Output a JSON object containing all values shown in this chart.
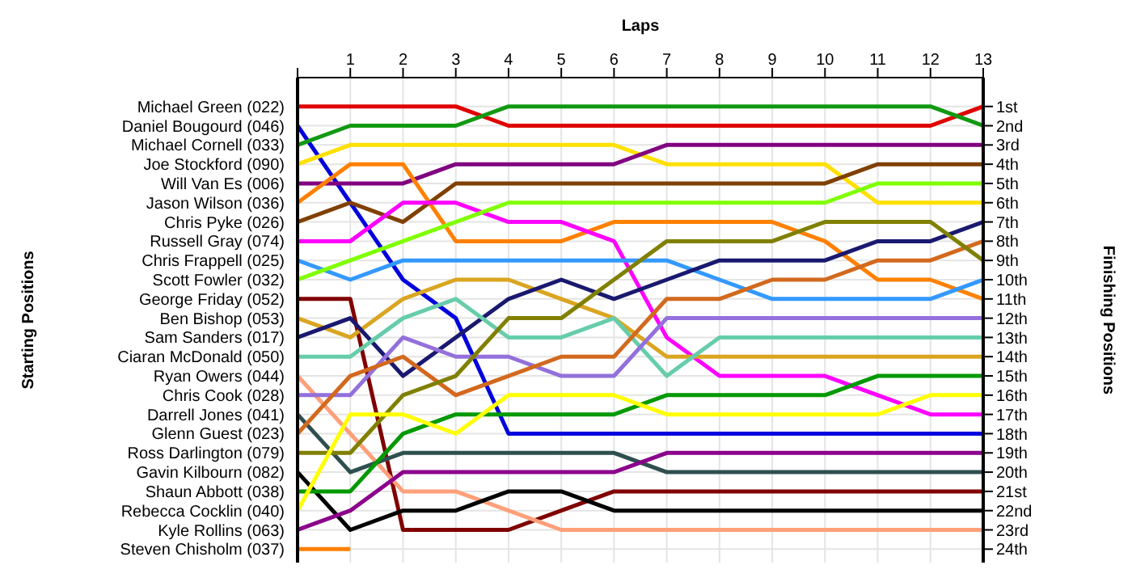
{
  "chart_data": {
    "type": "line",
    "xlabel": "Laps",
    "ylabel": "Finishing Positions",
    "annotations": [
      "Starting Positions"
    ],
    "grid": true,
    "marker": "none",
    "line_style": "solid",
    "x": [
      0,
      1,
      2,
      3,
      4,
      5,
      6,
      7,
      8,
      9,
      10,
      11,
      12,
      13
    ],
    "xlim": [
      0,
      13
    ],
    "xticks": [
      {
        "value": 0,
        "label": null
      },
      1,
      2,
      3,
      4,
      5,
      6,
      7,
      8,
      9,
      10,
      11,
      12,
      13
    ],
    "ylim": [
      24.7,
      -0.5
    ],
    "yticks": [
      {
        "value": 1,
        "label": "1st"
      },
      {
        "value": 2,
        "label": "2nd"
      },
      {
        "value": 3,
        "label": "3rd"
      },
      {
        "value": 4,
        "label": "4th"
      },
      {
        "value": 5,
        "label": "5th"
      },
      {
        "value": 6,
        "label": "6th"
      },
      {
        "value": 7,
        "label": "7th"
      },
      {
        "value": 8,
        "label": "8th"
      },
      {
        "value": 9,
        "label": "9th"
      },
      {
        "value": 10,
        "label": "10th"
      },
      {
        "value": 11,
        "label": "11th"
      },
      {
        "value": 12,
        "label": "12th"
      },
      {
        "value": 13,
        "label": "13th"
      },
      {
        "value": 14,
        "label": "14th"
      },
      {
        "value": 15,
        "label": "15th"
      },
      {
        "value": 16,
        "label": "16th"
      },
      {
        "value": 17,
        "label": "17th"
      },
      {
        "value": 18,
        "label": "18th"
      },
      {
        "value": 19,
        "label": "19th"
      },
      {
        "value": 20,
        "label": "20th"
      },
      {
        "value": 21,
        "label": "21st"
      },
      {
        "value": 22,
        "label": "22nd"
      },
      {
        "value": 23,
        "label": "23rd"
      },
      {
        "value": 24,
        "label": "24th"
      }
    ],
    "series": [
      {
        "name": "Michael Green (022)",
        "color": "#e00000",
        "values": [
          1,
          1,
          1,
          1,
          2,
          2,
          2,
          2,
          2,
          2,
          2,
          2,
          2,
          1
        ]
      },
      {
        "name": "Daniel Bougourd (046)",
        "color": "#0000dd",
        "values": [
          2,
          6,
          10,
          12,
          18,
          18,
          18,
          18,
          18,
          18,
          18,
          18,
          18,
          18
        ]
      },
      {
        "name": "Michael Cornell (033)",
        "color": "#119911",
        "values": [
          3,
          2,
          2,
          2,
          1,
          1,
          1,
          1,
          1,
          1,
          1,
          1,
          1,
          2
        ]
      },
      {
        "name": "Joe Stockford (090)",
        "color": "#ffe000",
        "values": [
          4,
          3,
          3,
          3,
          3,
          3,
          3,
          4,
          4,
          4,
          4,
          6,
          6,
          6
        ]
      },
      {
        "name": "Will Van Es (006)",
        "color": "#800080",
        "values": [
          5,
          5,
          5,
          4,
          4,
          4,
          4,
          3,
          3,
          3,
          3,
          3,
          3,
          3
        ]
      },
      {
        "name": "Jason Wilson (036)",
        "color": "#ff8000",
        "values": [
          6,
          4,
          4,
          8,
          8,
          8,
          7,
          7,
          7,
          7,
          8,
          10,
          10,
          11
        ]
      },
      {
        "name": "Chris Pyke (026)",
        "color": "#804000",
        "values": [
          7,
          6,
          7,
          5,
          5,
          5,
          5,
          5,
          5,
          5,
          5,
          4,
          4,
          4
        ]
      },
      {
        "name": "Russell Gray (074)",
        "color": "#ff00ff",
        "values": [
          8,
          8,
          6,
          6,
          7,
          7,
          8,
          13,
          15,
          15,
          15,
          16,
          17,
          17
        ]
      },
      {
        "name": "Chris Frappell (025)",
        "color": "#3399ff",
        "values": [
          9,
          10,
          9,
          9,
          9,
          9,
          9,
          9,
          10,
          11,
          11,
          11,
          11,
          10
        ]
      },
      {
        "name": "Scott Fowler (032)",
        "color": "#80ff00",
        "values": [
          10,
          9,
          8,
          7,
          6,
          6,
          6,
          6,
          6,
          6,
          6,
          5,
          5,
          5
        ]
      },
      {
        "name": "George Friday (052)",
        "color": "#800000",
        "values": [
          11,
          11,
          23,
          23,
          23,
          22,
          21,
          21,
          21,
          21,
          21,
          21,
          21,
          21
        ]
      },
      {
        "name": "Ben Bishop (053)",
        "color": "#daa520",
        "values": [
          12,
          13,
          11,
          10,
          10,
          11,
          12,
          14,
          14,
          14,
          14,
          14,
          14,
          14
        ]
      },
      {
        "name": "Sam Sanders (017)",
        "color": "#191970",
        "values": [
          13,
          12,
          15,
          13,
          11,
          10,
          11,
          10,
          9,
          9,
          9,
          8,
          8,
          7
        ]
      },
      {
        "name": "Ciaran McDonald (050)",
        "color": "#66cdaa",
        "values": [
          14,
          14,
          12,
          11,
          13,
          13,
          12,
          15,
          13,
          13,
          13,
          13,
          13,
          13
        ]
      },
      {
        "name": "Ryan Owers (044)",
        "color": "#ffa07a",
        "values": [
          15,
          18,
          21,
          21,
          22,
          23,
          23,
          23,
          23,
          23,
          23,
          23,
          23,
          23
        ]
      },
      {
        "name": "Chris Cook (028)",
        "color": "#9370db",
        "values": [
          16,
          16,
          13,
          14,
          14,
          15,
          15,
          12,
          12,
          12,
          12,
          12,
          12,
          12
        ]
      },
      {
        "name": "Darrell Jones (041)",
        "color": "#2f4f4f",
        "values": [
          17,
          20,
          19,
          19,
          19,
          19,
          19,
          20,
          20,
          20,
          20,
          20,
          20,
          20
        ]
      },
      {
        "name": "Glenn Guest (023)",
        "color": "#d2691e",
        "values": [
          18,
          15,
          14,
          16,
          15,
          14,
          14,
          11,
          11,
          10,
          10,
          9,
          9,
          8
        ]
      },
      {
        "name": "Ross Darlington (079)",
        "color": "#808000",
        "values": [
          19,
          19,
          16,
          15,
          12,
          12,
          10,
          8,
          8,
          8,
          7,
          7,
          7,
          9
        ]
      },
      {
        "name": "Gavin Kilbourn (082)",
        "color": "#000000",
        "values": [
          20,
          23,
          22,
          22,
          21,
          21,
          22,
          22,
          22,
          22,
          22,
          22,
          22,
          22
        ]
      },
      {
        "name": "Shaun Abbott (038)",
        "color": "#009900",
        "values": [
          21,
          21,
          18,
          17,
          17,
          17,
          17,
          16,
          16,
          16,
          16,
          15,
          15,
          15
        ]
      },
      {
        "name": "Rebecca Cocklin (040)",
        "color": "#ffff00",
        "values": [
          22,
          17,
          17,
          18,
          16,
          16,
          16,
          17,
          17,
          17,
          17,
          17,
          16,
          16
        ]
      },
      {
        "name": "Kyle Rollins (063)",
        "color": "#8b008b",
        "values": [
          23,
          22,
          20,
          20,
          20,
          20,
          20,
          19,
          19,
          19,
          19,
          19,
          19,
          19
        ]
      },
      {
        "name": "Steven Chisholm (037)",
        "color": "#ff8000",
        "values": [
          24,
          24,
          null,
          null,
          null,
          null,
          null,
          null,
          null,
          null,
          null,
          null,
          null,
          null
        ]
      }
    ]
  }
}
